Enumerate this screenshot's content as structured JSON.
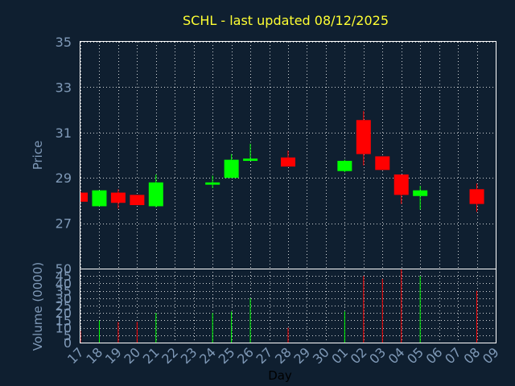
{
  "chart_data": {
    "type": "candlestick",
    "title": "SCHL - last updated 08/12/2025",
    "ylabel": "Price",
    "volume_label": "Volume (0000)",
    "xlabel": "Day",
    "ylim": [
      25,
      35
    ],
    "y_ticks": [
      "35",
      "33",
      "31",
      "29",
      "27"
    ],
    "volume_ylim": [
      0,
      50
    ],
    "volume_ticks": [
      "50",
      "45",
      "40",
      "35",
      "30",
      "25",
      "20",
      "15",
      "10",
      "5",
      "0"
    ],
    "x_ticks": [
      "17",
      "18",
      "19",
      "20",
      "21",
      "22",
      "23",
      "24",
      "25",
      "26",
      "27",
      "28",
      "29",
      "30",
      "01",
      "02",
      "03",
      "04",
      "05",
      "06",
      "07",
      "08",
      "09"
    ],
    "grid": true,
    "colors": {
      "background": "#0f1f30",
      "up": "#00ff00",
      "down": "#ff0000",
      "grid": "#ffffff",
      "frame": "#ffffff",
      "title": "#ffff33",
      "tick": "#7f99b7"
    },
    "candles": [
      {
        "day": "17",
        "open": 28.35,
        "high": 28.4,
        "low": 27.95,
        "close": 27.95,
        "volume": 8
      },
      {
        "day": "18",
        "open": 27.75,
        "high": 28.45,
        "low": 27.75,
        "close": 28.45,
        "volume": 15
      },
      {
        "day": "19",
        "open": 28.35,
        "high": 28.5,
        "low": 27.65,
        "close": 27.9,
        "volume": 14
      },
      {
        "day": "20",
        "open": 28.25,
        "high": 28.25,
        "low": 27.8,
        "close": 27.8,
        "volume": 14
      },
      {
        "day": "21",
        "open": 27.75,
        "high": 29.15,
        "low": 27.7,
        "close": 28.8,
        "volume": 20
      },
      {
        "day": "24",
        "open": 28.7,
        "high": 29.1,
        "low": 28.55,
        "close": 28.8,
        "volume": 20
      },
      {
        "day": "25",
        "open": 29.0,
        "high": 30.05,
        "low": 29.0,
        "close": 29.8,
        "volume": 21
      },
      {
        "day": "26",
        "open": 29.75,
        "high": 30.5,
        "low": 29.75,
        "close": 29.85,
        "volume": 30
      },
      {
        "day": "28",
        "open": 29.9,
        "high": 30.2,
        "low": 29.5,
        "close": 29.5,
        "volume": 10
      },
      {
        "day": "01",
        "open": 29.3,
        "high": 29.8,
        "low": 29.25,
        "close": 29.75,
        "volume": 21
      },
      {
        "day": "02",
        "open": 31.55,
        "high": 31.95,
        "low": 29.55,
        "close": 30.05,
        "volume": 45
      },
      {
        "day": "03",
        "open": 29.95,
        "high": 29.95,
        "low": 29.35,
        "close": 29.35,
        "volume": 43
      },
      {
        "day": "04",
        "open": 29.15,
        "high": 29.15,
        "low": 27.85,
        "close": 28.25,
        "volume": 50
      },
      {
        "day": "05",
        "open": 28.2,
        "high": 28.65,
        "low": 27.6,
        "close": 28.45,
        "volume": 45
      },
      {
        "day": "08",
        "open": 28.5,
        "high": 28.75,
        "low": 27.5,
        "close": 27.85,
        "volume": 35
      }
    ]
  }
}
